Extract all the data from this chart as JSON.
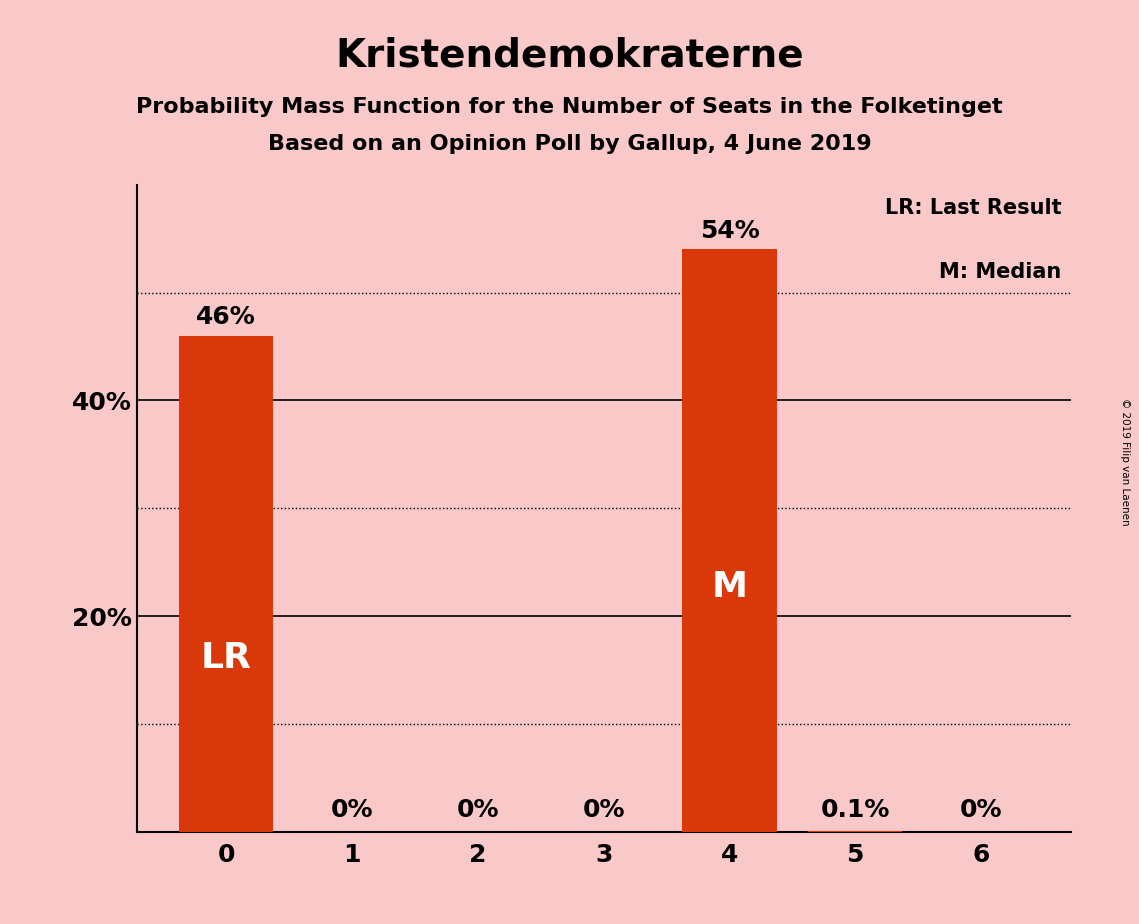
{
  "title": "Kristendemokraterne",
  "subtitle1": "Probability Mass Function for the Number of Seats in the Folketinget",
  "subtitle2": "Based on an Opinion Poll by Gallup, 4 June 2019",
  "categories": [
    0,
    1,
    2,
    3,
    4,
    5,
    6
  ],
  "values": [
    0.46,
    0.0,
    0.0,
    0.0,
    0.54,
    0.001,
    0.0
  ],
  "bar_labels": [
    "46%",
    "0%",
    "0%",
    "0%",
    "54%",
    "0.1%",
    "0%"
  ],
  "bar_color": "#d9390a",
  "background_color": "#f9c8c8",
  "lr_bar": 0,
  "median_bar": 4,
  "lr_label": "LR",
  "median_label": "M",
  "legend_lr": "LR: Last Result",
  "legend_m": "M: Median",
  "copyright": "© 2019 Filip van Laenen",
  "ylim": [
    0,
    0.6
  ],
  "solid_gridlines": [
    0.2,
    0.4
  ],
  "dotted_gridlines": [
    0.1,
    0.3,
    0.5
  ],
  "ytick_positions": [
    0.2,
    0.4
  ],
  "ytick_labels": [
    "20%",
    "40%"
  ],
  "title_fontsize": 28,
  "subtitle_fontsize": 16,
  "bar_label_fontsize": 18,
  "axis_label_fontsize": 18,
  "inside_label_fontsize": 26
}
